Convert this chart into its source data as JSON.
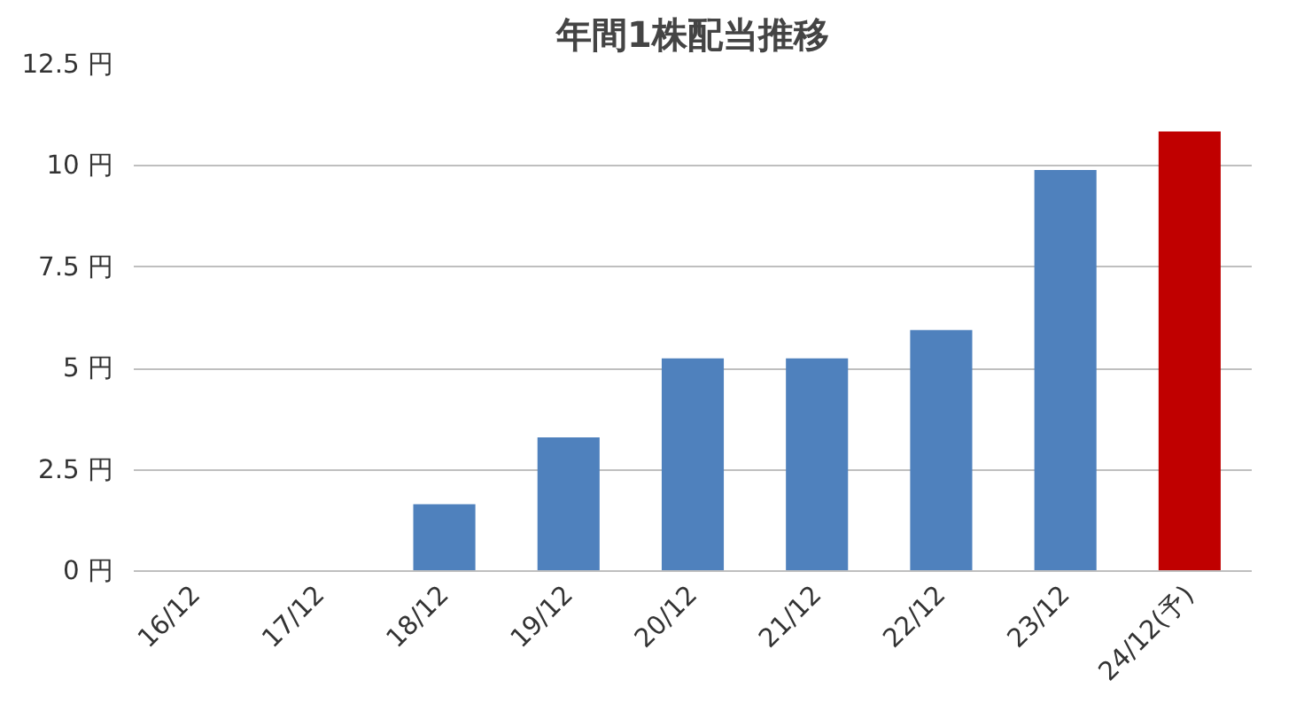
{
  "chart_data": {
    "type": "bar",
    "title": "年間1株配当推移",
    "categories": [
      "16/12",
      "17/12",
      "18/12",
      "19/12",
      "20/12",
      "21/12",
      "22/12",
      "23/12",
      "24/12(予)"
    ],
    "values": [
      0,
      0,
      1.65,
      3.3,
      5.25,
      5.25,
      5.95,
      9.9,
      10.85
    ],
    "colors": [
      "#4f81bd",
      "#4f81bd",
      "#4f81bd",
      "#4f81bd",
      "#4f81bd",
      "#4f81bd",
      "#4f81bd",
      "#4f81bd",
      "#c00000"
    ],
    "ylim": [
      0,
      12.5
    ],
    "yticks": [
      {
        "value": 0,
        "label": "0 円"
      },
      {
        "value": 2.5,
        "label": "2.5 円"
      },
      {
        "value": 5,
        "label": "5 円"
      },
      {
        "value": 7.5,
        "label": "7.5 円"
      },
      {
        "value": 10,
        "label": "10 円"
      },
      {
        "value": 12.5,
        "label": "12.5 円"
      }
    ],
    "grid": "y"
  }
}
